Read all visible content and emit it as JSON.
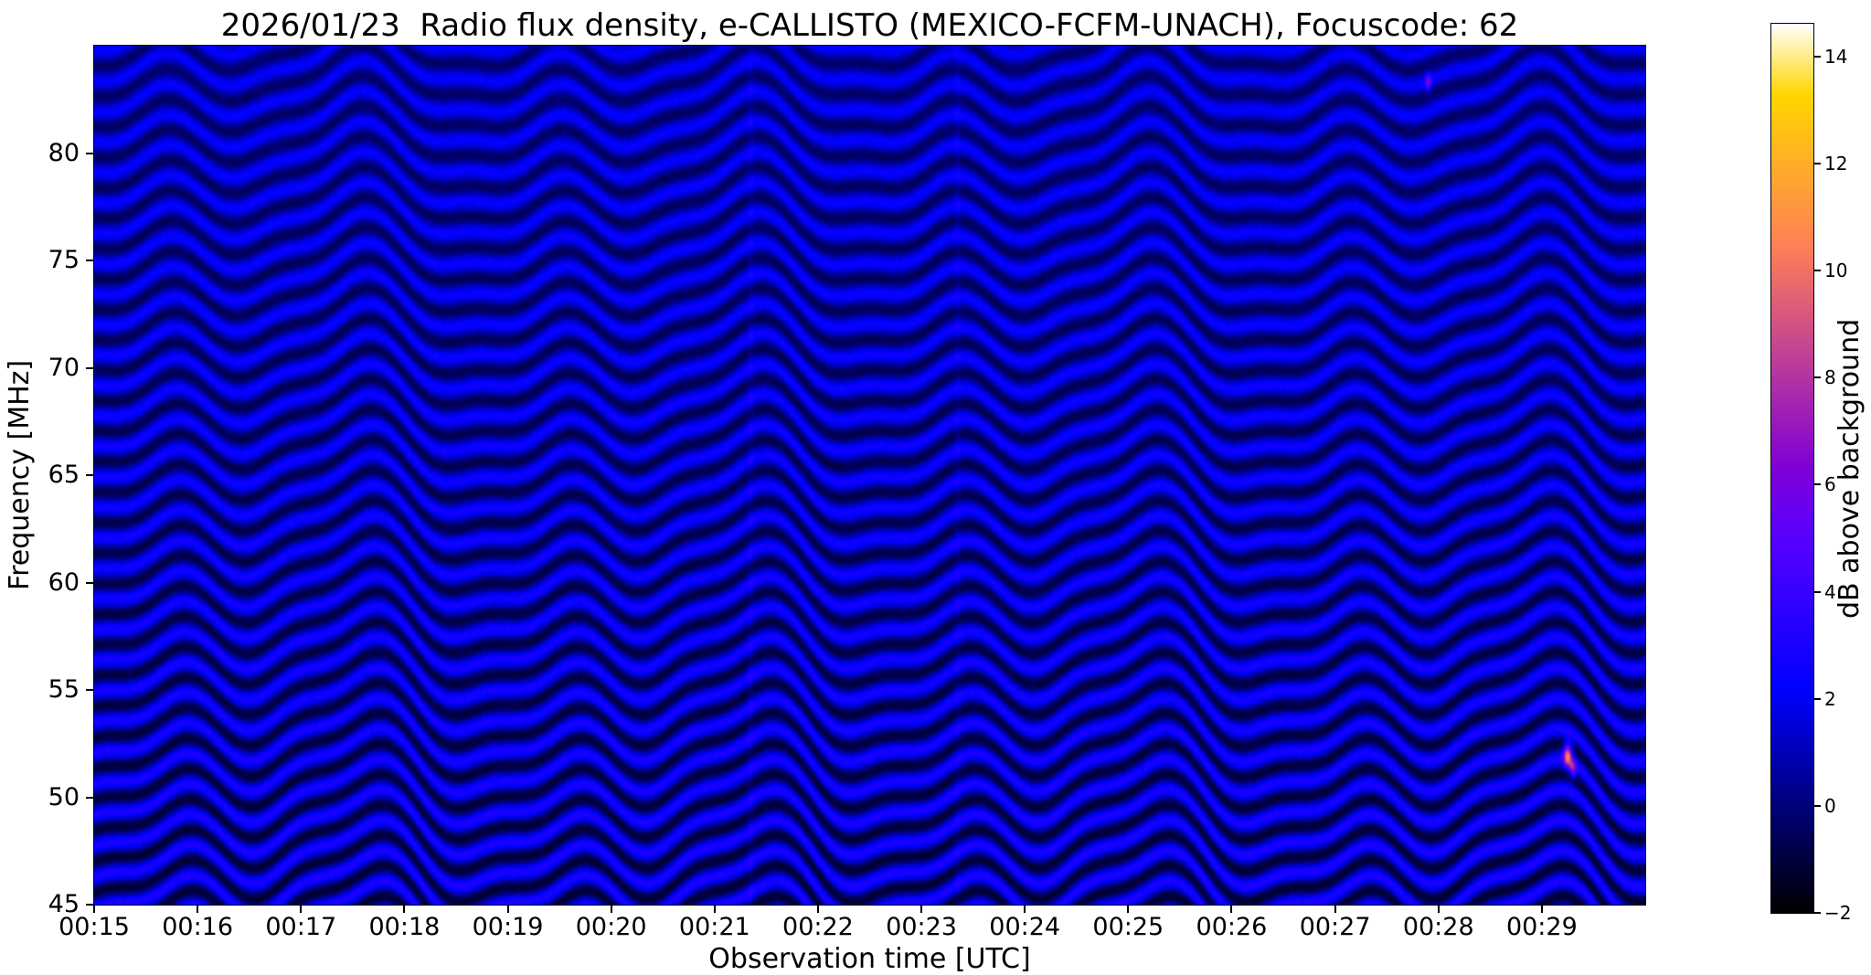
{
  "chart_data": {
    "type": "heatmap",
    "title": "2026/01/23  Radio flux density, e-CALLISTO (MEXICO-FCFM-UNACH), Focuscode: 62",
    "xlabel": "Observation time [UTC]",
    "ylabel": "Frequency [MHz]",
    "meta": {
      "date": "2026/01/23",
      "instrument": "e-CALLISTO (MEXICO-FCFM-UNACH)",
      "focuscode": "62"
    },
    "x_axis": {
      "range_minutes": [
        15,
        30
      ],
      "tick_minutes": [
        15,
        16,
        17,
        18,
        19,
        20,
        21,
        22,
        23,
        24,
        25,
        26,
        27,
        28,
        29
      ],
      "tick_labels": [
        "00:15",
        "00:16",
        "00:17",
        "00:18",
        "00:19",
        "00:20",
        "00:21",
        "00:22",
        "00:23",
        "00:24",
        "00:25",
        "00:26",
        "00:27",
        "00:28",
        "00:29"
      ]
    },
    "y_axis": {
      "lim": [
        45,
        85
      ],
      "ticks": [
        45,
        50,
        55,
        60,
        65,
        70,
        75,
        80
      ]
    },
    "colorbar": {
      "label": "dB above background",
      "vmin": -2,
      "vmax": 14.61,
      "tick_values": [
        -2,
        0,
        2,
        4,
        6,
        8,
        10,
        12,
        14
      ],
      "tick_labels": [
        "−2",
        "0",
        "2",
        "4",
        "6",
        "8",
        "10",
        "12",
        "14"
      ],
      "colormap": "gnuplot2",
      "position": "right"
    },
    "grid": false,
    "description": "Dynamic radio spectrum (spectrogram) from 45 to 85 MHz over 00:15-00:30 UTC. No solar burst; the image is dominated by quasi-horizontal undulating interference fringes (~1.4 MHz spacing) drifting in time, with intensities mostly between -1 and +3 dB above background (dark blue / blue bands on black), plus a faint pink RFI speck near 00:29 at ~52 MHz and faint vertical streaks near 00:21.3 and 00:23.3.",
    "pattern": {
      "kind": "interference-fringes",
      "fringe_spacing_mhz": 1.42,
      "fringe_phase_rad": 0.3,
      "base_db": 0.95,
      "contrast_db_bottom": 2.1,
      "contrast_db_top": 1.25,
      "noise_db": 0.3,
      "wobble_gain_low_freq": 0.25,
      "wobbles": [
        {
          "period_min": 3.8,
          "amp_mhz": 0.55,
          "phase_rad": 0.6,
          "freq_phase_rad_per_mhz": 0
        },
        {
          "period_min": 1.9,
          "amp_mhz": 0.8,
          "phase_rad": 2.1,
          "freq_phase_rad_per_mhz": 0.012
        },
        {
          "period_min": 0.95,
          "amp_mhz": 0.32,
          "phase_rad": 4.2,
          "freq_phase_rad_per_mhz": 0.05
        }
      ],
      "streaks": [
        {
          "t_min": 21.35,
          "sigma_min": 0.02,
          "extra_db": 0.6
        },
        {
          "t_min": 23.35,
          "sigma_min": 0.02,
          "extra_db": 0.5
        }
      ],
      "specks": [
        {
          "t_min": 29.25,
          "f_mhz": 52.0,
          "db": 9,
          "sigma_t_min": 0.03,
          "sigma_f_mhz": 0.4
        },
        {
          "t_min": 29.3,
          "f_mhz": 51.3,
          "db": 5,
          "sigma_t_min": 0.025,
          "sigma_f_mhz": 0.3
        },
        {
          "t_min": 27.9,
          "f_mhz": 83.3,
          "db": 4,
          "sigma_t_min": 0.02,
          "sigma_f_mhz": 0.3
        }
      ]
    }
  }
}
